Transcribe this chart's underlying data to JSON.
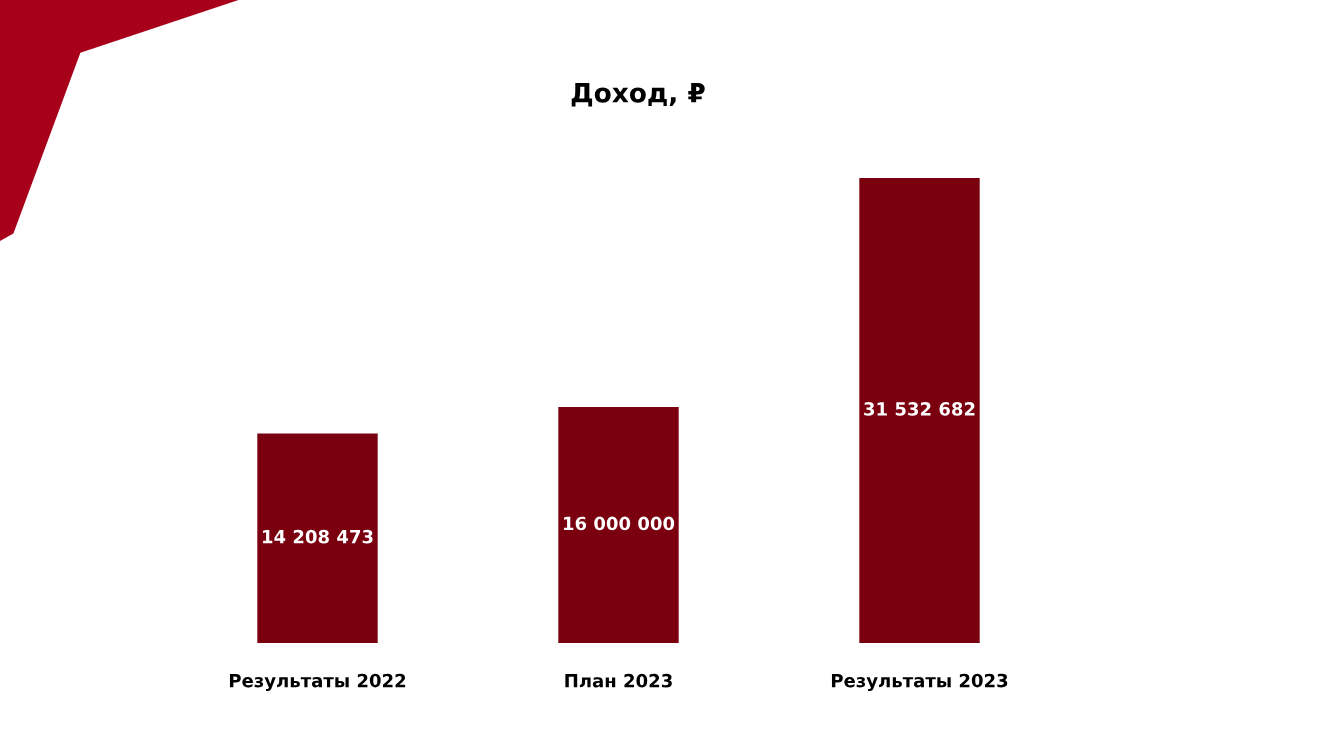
{
  "chart_data": {
    "type": "bar",
    "title": "Доход, ₽",
    "categories": [
      "Результаты 2022",
      "План 2023",
      "Результаты 2023"
    ],
    "values": [
      14208473,
      16000000,
      31532682
    ],
    "value_labels": [
      "14 208 473",
      "16 000 000",
      "31 532 682"
    ],
    "color": "#7a0010",
    "grid": false,
    "legend": false
  }
}
